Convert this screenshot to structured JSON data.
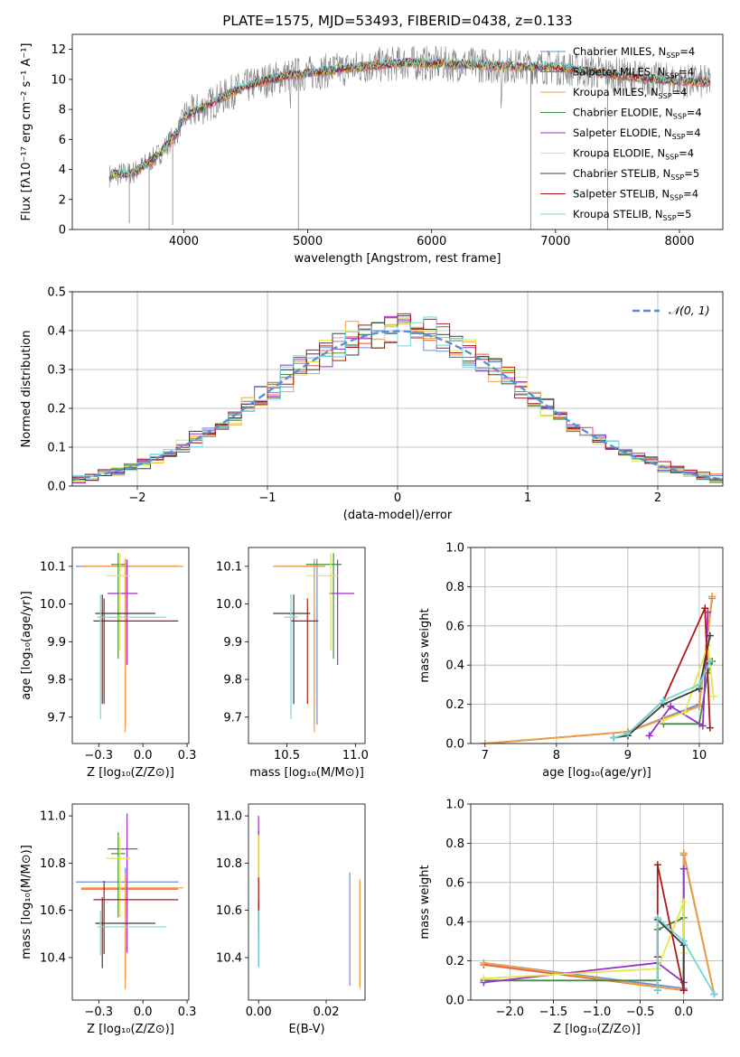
{
  "colors": {
    "Chabrier MILES": "#6a8fd8",
    "Salpeter MILES": "#e8573a",
    "Kroupa MILES": "#f0a040",
    "Chabrier ELODIE": "#3f8f3f",
    "Salpeter ELODIE": "#9b30c8",
    "Kroupa ELODIE": "#e3e84a",
    "Chabrier STELIB": "#3c3c3c",
    "Salpeter STELIB": "#b01818",
    "Kroupa STELIB": "#70d8d8",
    "normal": "#5b8ed6",
    "data": "#808080"
  },
  "chart_data": [
    {
      "id": "spectrum",
      "type": "line",
      "title": "PLATE=1575, MJD=53493, FIBERID=0438, z=0.133",
      "xlabel": "wavelength [Angstrom, rest frame]",
      "ylabel": "Flux [fλ10⁻¹⁷ erg cm⁻² s⁻¹ A⁻¹]",
      "xlim": [
        3100,
        8350
      ],
      "ylim": [
        0,
        13
      ],
      "xticks": [
        4000,
        5000,
        6000,
        7000,
        8000
      ],
      "yticks": [
        0,
        2,
        4,
        6,
        8,
        10,
        12
      ],
      "legend": "top-right",
      "legend_entries": [
        {
          "base": "Chabrier MILES, N",
          "sub": "SSP",
          "tail": "=4"
        },
        {
          "base": "Salpeter MILES, N",
          "sub": "SSP",
          "tail": "=4"
        },
        {
          "base": "Kroupa MILES, N",
          "sub": "SSP",
          "tail": "=4"
        },
        {
          "base": "Chabrier ELODIE, N",
          "sub": "SSP",
          "tail": "=4"
        },
        {
          "base": "Salpeter ELODIE, N",
          "sub": "SSP",
          "tail": "=4"
        },
        {
          "base": "Kroupa ELODIE, N",
          "sub": "SSP",
          "tail": "=4"
        },
        {
          "base": "Chabrier STELIB, N",
          "sub": "SSP",
          "tail": "=5"
        },
        {
          "base": "Salpeter STELIB, N",
          "sub": "SSP",
          "tail": "=4"
        },
        {
          "base": "Kroupa STELIB, N",
          "sub": "SSP",
          "tail": "=5"
        }
      ],
      "continuum": [
        [
          3400,
          3.6
        ],
        [
          3600,
          3.8
        ],
        [
          3800,
          5.0
        ],
        [
          3950,
          6.5
        ],
        [
          4000,
          7.5
        ],
        [
          4200,
          8.3
        ],
        [
          4400,
          9.2
        ],
        [
          4600,
          9.8
        ],
        [
          4800,
          10.2
        ],
        [
          5000,
          10.4
        ],
        [
          5200,
          10.6
        ],
        [
          5500,
          10.9
        ],
        [
          5800,
          11.1
        ],
        [
          6200,
          11.0
        ],
        [
          6600,
          10.9
        ],
        [
          7000,
          10.8
        ],
        [
          7400,
          10.4
        ],
        [
          7800,
          10.0
        ],
        [
          8000,
          9.9
        ],
        [
          8200,
          9.8
        ]
      ]
    },
    {
      "id": "residuals",
      "type": "histogram",
      "xlabel": "(data-model)/error",
      "ylabel": "Normed distribution",
      "xlim": [
        -2.5,
        2.5
      ],
      "ylim": [
        0,
        0.5
      ],
      "xticks": [
        -2,
        -1,
        0,
        1,
        2
      ],
      "yticks": [
        0.0,
        0.1,
        0.2,
        0.3,
        0.4,
        0.5
      ],
      "legend": "top-right",
      "legend_label": "𝒩(0, 1)",
      "bin_width": 0.1
    },
    {
      "id": "age_vs_Z",
      "type": "errorbar",
      "xlabel": "Z [log₁₀(Z/Z⊙)]",
      "ylabel": "age  [log₁₀(age/yr)]",
      "xlim": [
        -0.4,
        0.26
      ],
      "ylim": [
        9.63,
        10.15
      ],
      "xticks": [
        -0.25,
        0.0,
        0.25
      ],
      "yticks": [
        9.7,
        9.8,
        9.9,
        10.0,
        10.1
      ],
      "points": [
        {
          "model": "Chabrier MILES",
          "x": -0.1,
          "xerr": [
            0.28,
            0.3
          ],
          "y": 10.1,
          "yerr": [
            0.42,
            0.02
          ]
        },
        {
          "model": "Salpeter MILES",
          "x": -0.1,
          "xerr": [
            0.25,
            0.3
          ],
          "y": 10.1,
          "yerr": [
            0.42,
            0.02
          ]
        },
        {
          "model": "Kroupa MILES",
          "x": -0.1,
          "xerr": [
            0.25,
            0.33
          ],
          "y": 10.1,
          "yerr": [
            0.44,
            0.02
          ]
        },
        {
          "model": "Chabrier ELODIE",
          "x": -0.14,
          "xerr": [
            0.04,
            0.04
          ],
          "y": 10.105,
          "yerr": [
            0.25,
            0.03
          ]
        },
        {
          "model": "Salpeter ELODIE",
          "x": -0.09,
          "xerr": [
            0.11,
            0.06
          ],
          "y": 10.028,
          "yerr": [
            0.19,
            0.09
          ]
        },
        {
          "model": "Kroupa ELODIE",
          "x": -0.13,
          "xerr": [
            0.08,
            0.06
          ],
          "y": 10.075,
          "yerr": [
            0.2,
            0.06
          ]
        },
        {
          "model": "Chabrier STELIB",
          "x": -0.23,
          "xerr": [
            0.04,
            0.3
          ],
          "y": 9.975,
          "yerr": [
            0.24,
            0.05
          ]
        },
        {
          "model": "Salpeter STELIB",
          "x": -0.22,
          "xerr": [
            0.06,
            0.42
          ],
          "y": 9.955,
          "yerr": [
            0.22,
            0.06
          ]
        },
        {
          "model": "Kroupa STELIB",
          "x": -0.24,
          "xerr": [
            0.02,
            0.37
          ],
          "y": 9.965,
          "yerr": [
            0.27,
            0.06
          ]
        }
      ]
    },
    {
      "id": "age_vs_mass",
      "type": "errorbar",
      "xlabel": "mass [log₁₀(M/M⊙)]",
      "ylabel": "",
      "xlim": [
        10.22,
        11.07
      ],
      "ylim": [
        9.63,
        10.15
      ],
      "xticks": [
        10.5,
        11.0
      ],
      "yticks": [
        9.7,
        9.8,
        9.9,
        10.0,
        10.1
      ],
      "points": [
        {
          "model": "Chabrier MILES",
          "x": 10.72,
          "xerr": [
            0.32,
            0.06
          ],
          "y": 10.1,
          "yerr": [
            0.42,
            0.02
          ]
        },
        {
          "model": "Salpeter MILES",
          "x": 10.7,
          "xerr": [
            0.25,
            0.06
          ],
          "y": 10.1,
          "yerr": [
            0.42,
            0.02
          ]
        },
        {
          "model": "Kroupa MILES",
          "x": 10.7,
          "xerr": [
            0.3,
            0.08
          ],
          "y": 10.1,
          "yerr": [
            0.44,
            0.02
          ]
        },
        {
          "model": "Chabrier ELODIE",
          "x": 10.84,
          "xerr": [
            0.2,
            0.06
          ],
          "y": 10.105,
          "yerr": [
            0.25,
            0.03
          ]
        },
        {
          "model": "Salpeter ELODIE",
          "x": 10.87,
          "xerr": [
            0.06,
            0.12
          ],
          "y": 10.028,
          "yerr": [
            0.19,
            0.09
          ]
        },
        {
          "model": "Kroupa ELODIE",
          "x": 10.82,
          "xerr": [
            0.18,
            0.06
          ],
          "y": 10.075,
          "yerr": [
            0.2,
            0.06
          ]
        },
        {
          "model": "Chabrier STELIB",
          "x": 10.55,
          "xerr": [
            0.15,
            0.12
          ],
          "y": 9.975,
          "yerr": [
            0.24,
            0.05
          ]
        },
        {
          "model": "Salpeter STELIB",
          "x": 10.65,
          "xerr": [
            0.12,
            0.08
          ],
          "y": 9.955,
          "yerr": [
            0.22,
            0.06
          ]
        },
        {
          "model": "Kroupa STELIB",
          "x": 10.53,
          "xerr": [
            0.05,
            0.05
          ],
          "y": 9.965,
          "yerr": [
            0.27,
            0.06
          ]
        }
      ]
    },
    {
      "id": "mass_vs_Z",
      "type": "errorbar",
      "xlabel": "Z [log₁₀(Z/Z⊙)]",
      "ylabel": "mass [log₁₀(M/M⊙)]",
      "xlim": [
        -0.4,
        0.26
      ],
      "ylim": [
        10.22,
        11.05
      ],
      "xticks": [
        -0.25,
        0.0,
        0.25
      ],
      "yticks": [
        10.4,
        10.6,
        10.8,
        11.0
      ],
      "points": [
        {
          "model": "Chabrier MILES",
          "x": -0.1,
          "xerr": [
            0.28,
            0.3
          ],
          "y": 10.72,
          "yerr": [
            0.42,
            0.06
          ]
        },
        {
          "model": "Salpeter MILES",
          "x": -0.1,
          "xerr": [
            0.25,
            0.3
          ],
          "y": 10.69,
          "yerr": [
            0.39,
            0.06
          ]
        },
        {
          "model": "Kroupa MILES",
          "x": -0.1,
          "xerr": [
            0.25,
            0.33
          ],
          "y": 10.695,
          "yerr": [
            0.43,
            0.06
          ]
        },
        {
          "model": "Chabrier ELODIE",
          "x": -0.14,
          "xerr": [
            0.04,
            0.04
          ],
          "y": 10.84,
          "yerr": [
            0.27,
            0.09
          ]
        },
        {
          "model": "Salpeter ELODIE",
          "x": -0.09,
          "xerr": [
            0.11,
            0.06
          ],
          "y": 10.86,
          "yerr": [
            0.44,
            0.15
          ]
        },
        {
          "model": "Kroupa ELODIE",
          "x": -0.13,
          "xerr": [
            0.08,
            0.06
          ],
          "y": 10.82,
          "yerr": [
            0.25,
            0.09
          ]
        },
        {
          "model": "Chabrier STELIB",
          "x": -0.23,
          "xerr": [
            0.04,
            0.3
          ],
          "y": 10.545,
          "yerr": [
            0.19,
            0.11
          ]
        },
        {
          "model": "Salpeter STELIB",
          "x": -0.22,
          "xerr": [
            0.06,
            0.42
          ],
          "y": 10.645,
          "yerr": [
            0.23,
            0.08
          ]
        },
        {
          "model": "Kroupa STELIB",
          "x": -0.24,
          "xerr": [
            0.02,
            0.37
          ],
          "y": 10.53,
          "yerr": [
            0.12,
            0.07
          ]
        }
      ]
    },
    {
      "id": "mass_vs_ebv",
      "type": "errorbar",
      "xlabel": "E(B-V)",
      "ylabel": "",
      "xlim": [
        -0.003,
        0.0315
      ],
      "ylim": [
        10.22,
        11.05
      ],
      "xticks": [
        0.0,
        0.02
      ],
      "yticks": [
        10.4,
        10.6,
        10.8,
        11.0
      ],
      "points": [
        {
          "model": "Chabrier MILES",
          "x": 0.027,
          "y": 10.52,
          "yerr": [
            0.24,
            0.24
          ]
        },
        {
          "model": "Salpeter MILES",
          "x": 0.03,
          "y": 10.5,
          "yerr": [
            0.22,
            0.22
          ]
        },
        {
          "model": "Kroupa MILES",
          "x": 0.03,
          "y": 10.5,
          "yerr": [
            0.23,
            0.23
          ]
        },
        {
          "model": "Chabrier ELODIE",
          "x": 0.0,
          "y": 10.78,
          "yerr": [
            0.3,
            0.16
          ]
        },
        {
          "model": "Salpeter ELODIE",
          "x": 0.0,
          "y": 10.8,
          "yerr": [
            0.32,
            0.2
          ]
        },
        {
          "model": "Kroupa ELODIE",
          "x": 0.0,
          "y": 10.72,
          "yerr": [
            0.26,
            0.2
          ]
        },
        {
          "model": "Chabrier STELIB",
          "x": 0.0,
          "y": 10.5,
          "yerr": [
            0.14,
            0.14
          ]
        },
        {
          "model": "Salpeter STELIB",
          "x": 0.0,
          "y": 10.62,
          "yerr": [
            0.12,
            0.12
          ]
        },
        {
          "model": "Kroupa STELIB",
          "x": 0.0,
          "y": 10.48,
          "yerr": [
            0.12,
            0.12
          ]
        }
      ]
    },
    {
      "id": "weight_vs_age",
      "type": "line",
      "xlabel": "age  [log₁₀(age/yr)]",
      "ylabel": "mass weight",
      "xlim": [
        6.8,
        10.33
      ],
      "ylim": [
        0,
        1
      ],
      "xticks": [
        7,
        8,
        9,
        10
      ],
      "yticks": [
        0.0,
        0.2,
        0.4,
        0.6,
        0.8,
        1.0
      ],
      "series": [
        {
          "model": "Chabrier MILES",
          "x": [
            7.0,
            9.0,
            10.0,
            10.18
          ],
          "y": [
            0.0,
            0.06,
            0.2,
            0.74
          ]
        },
        {
          "model": "Salpeter MILES",
          "x": [
            7.0,
            9.0,
            10.0,
            10.18
          ],
          "y": [
            0.0,
            0.06,
            0.19,
            0.75
          ]
        },
        {
          "model": "Kroupa MILES",
          "x": [
            7.0,
            9.0,
            10.0,
            10.18
          ],
          "y": [
            0.0,
            0.06,
            0.19,
            0.75
          ]
        },
        {
          "model": "Chabrier ELODIE",
          "x": [
            9.5,
            10.0,
            10.12,
            10.18
          ],
          "y": [
            0.1,
            0.1,
            0.36,
            0.42
          ]
        },
        {
          "model": "Salpeter ELODIE",
          "x": [
            9.3,
            9.6,
            10.05,
            10.12
          ],
          "y": [
            0.04,
            0.19,
            0.09,
            0.67
          ]
        },
        {
          "model": "Kroupa ELODIE",
          "x": [
            9.5,
            9.8,
            10.12,
            10.2
          ],
          "y": [
            0.12,
            0.16,
            0.5,
            0.24
          ]
        },
        {
          "model": "Chabrier STELIB",
          "x": [
            8.8,
            9.0,
            9.5,
            10.0,
            10.15
          ],
          "y": [
            0.03,
            0.04,
            0.2,
            0.28,
            0.55
          ]
        },
        {
          "model": "Salpeter STELIB",
          "x": [
            9.0,
            9.5,
            10.08,
            10.15
          ],
          "y": [
            0.05,
            0.22,
            0.69,
            0.08
          ]
        },
        {
          "model": "Kroupa STELIB",
          "x": [
            8.8,
            9.0,
            9.5,
            10.0,
            10.15
          ],
          "y": [
            0.03,
            0.05,
            0.22,
            0.3,
            0.42
          ]
        }
      ]
    },
    {
      "id": "weight_vs_Z",
      "type": "line",
      "xlabel": "Z [log₁₀(Z/Z⊙)]",
      "ylabel": "mass weight",
      "xlim": [
        -2.45,
        0.45
      ],
      "ylim": [
        0,
        1
      ],
      "xticks": [
        -2.0,
        -1.5,
        -1.0,
        -0.5,
        0.0
      ],
      "yticks": [
        0.0,
        0.2,
        0.4,
        0.6,
        0.8,
        1.0
      ],
      "series": [
        {
          "model": "Chabrier MILES",
          "x": [
            -2.3,
            0.0,
            0.0,
            0.35
          ],
          "y": [
            0.19,
            0.06,
            0.74,
            0.03
          ]
        },
        {
          "model": "Salpeter MILES",
          "x": [
            -2.3,
            0.0,
            0.0,
            0.35
          ],
          "y": [
            0.18,
            0.05,
            0.75,
            0.03
          ]
        },
        {
          "model": "Kroupa MILES",
          "x": [
            -2.3,
            0.0,
            0.0,
            0.35
          ],
          "y": [
            0.19,
            0.05,
            0.75,
            0.03
          ]
        },
        {
          "model": "Chabrier ELODIE",
          "x": [
            -2.3,
            -0.3,
            -0.3,
            0.0
          ],
          "y": [
            0.1,
            0.1,
            0.36,
            0.42
          ]
        },
        {
          "model": "Salpeter ELODIE",
          "x": [
            -2.3,
            -0.3,
            0.0,
            0.0
          ],
          "y": [
            0.09,
            0.19,
            0.09,
            0.67
          ]
        },
        {
          "model": "Kroupa ELODIE",
          "x": [
            -2.3,
            -0.3,
            0.0,
            0.0
          ],
          "y": [
            0.11,
            0.16,
            0.5,
            0.24
          ]
        },
        {
          "model": "Chabrier STELIB",
          "x": [
            -0.3,
            -0.3,
            0.0,
            0.0
          ],
          "y": [
            0.05,
            0.41,
            0.28,
            0.05
          ]
        },
        {
          "model": "Salpeter STELIB",
          "x": [
            -0.3,
            -0.3,
            0.0
          ],
          "y": [
            0.22,
            0.69,
            0.05
          ]
        },
        {
          "model": "Kroupa STELIB",
          "x": [
            -0.3,
            -0.3,
            0.0,
            0.35
          ],
          "y": [
            0.05,
            0.42,
            0.3,
            0.03
          ]
        }
      ]
    }
  ]
}
